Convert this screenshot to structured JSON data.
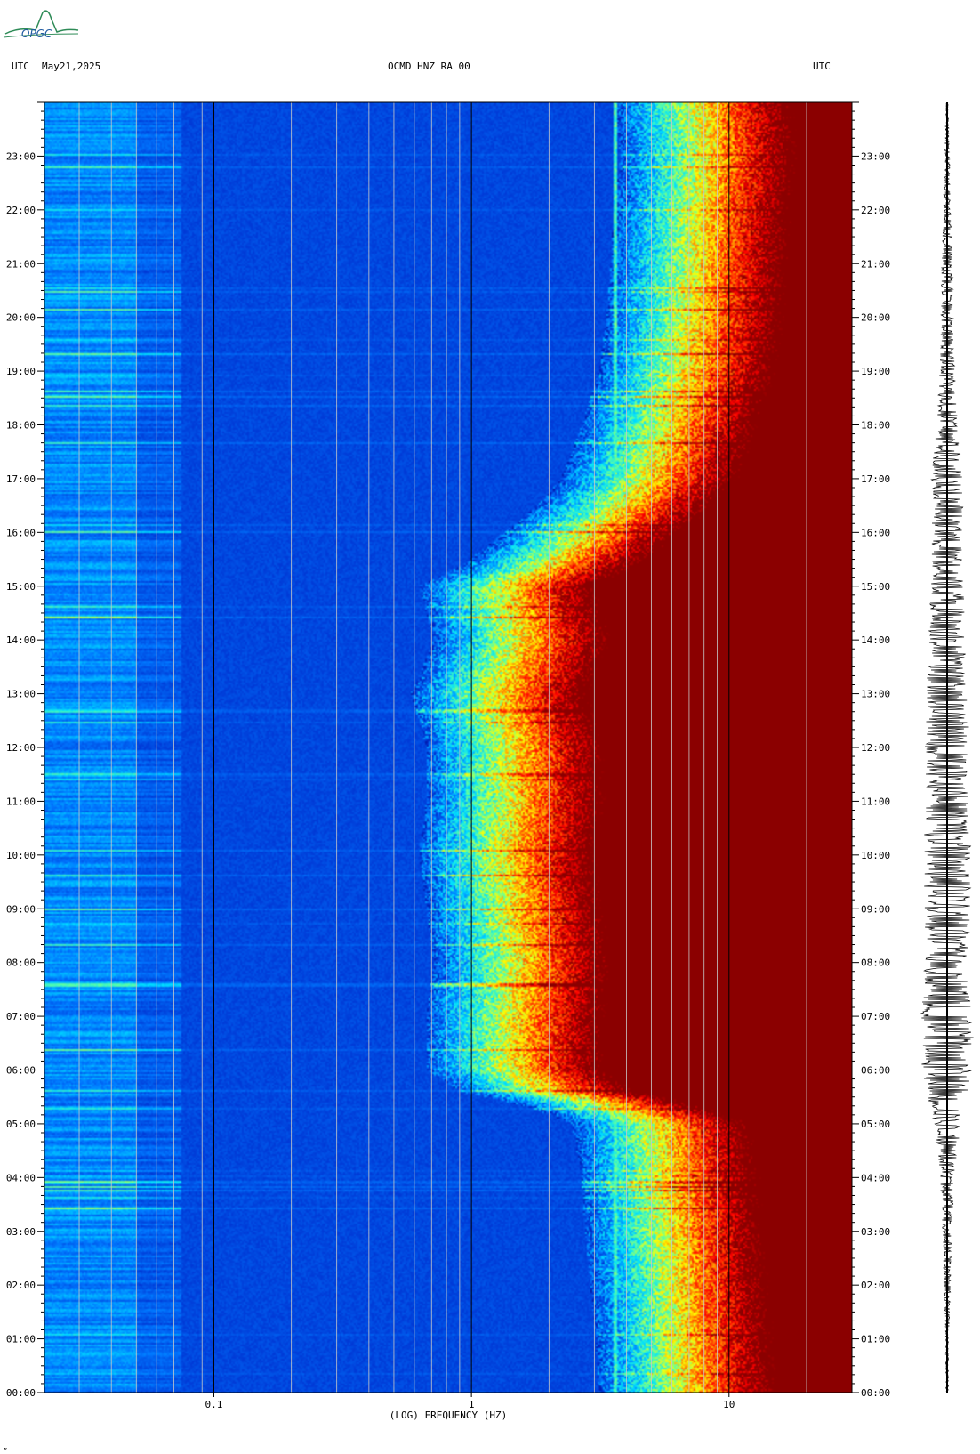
{
  "header": {
    "left_zone": "UTC",
    "date": "May21,2025",
    "station": "OCMD HNZ RA 00",
    "right_zone": "UTC"
  },
  "logo": {
    "text": "OPGC"
  },
  "footnote": {
    "text": "„"
  },
  "chart_data": {
    "type": "heatmap",
    "subtype": "spectrogram",
    "xlabel": "(LOG) FREQUENCY (HZ)",
    "xscale": "log",
    "xlim": [
      0.022,
      30
    ],
    "xticks": [
      {
        "value": 0.1,
        "label": "0.1"
      },
      {
        "value": 1,
        "label": "1"
      },
      {
        "value": 10,
        "label": "10"
      }
    ],
    "gridlines_hz": [
      0.03,
      0.04,
      0.05,
      0.06,
      0.07,
      0.08,
      0.09,
      0.2,
      0.3,
      0.4,
      0.5,
      0.6,
      0.7,
      0.8,
      0.9,
      2,
      3,
      4,
      5,
      6,
      7,
      8,
      9,
      20
    ],
    "ylim_hours": [
      0,
      24
    ],
    "yticks": [
      {
        "value": 0,
        "label": "00:00"
      },
      {
        "value": 1,
        "label": "01:00"
      },
      {
        "value": 2,
        "label": "02:00"
      },
      {
        "value": 3,
        "label": "03:00"
      },
      {
        "value": 4,
        "label": "04:00"
      },
      {
        "value": 5,
        "label": "05:00"
      },
      {
        "value": 6,
        "label": "06:00"
      },
      {
        "value": 7,
        "label": "07:00"
      },
      {
        "value": 8,
        "label": "08:00"
      },
      {
        "value": 9,
        "label": "09:00"
      },
      {
        "value": 10,
        "label": "10:00"
      },
      {
        "value": 11,
        "label": "11:00"
      },
      {
        "value": 12,
        "label": "12:00"
      },
      {
        "value": 13,
        "label": "13:00"
      },
      {
        "value": 14,
        "label": "14:00"
      },
      {
        "value": 15,
        "label": "15:00"
      },
      {
        "value": 16,
        "label": "16:00"
      },
      {
        "value": 17,
        "label": "17:00"
      },
      {
        "value": 18,
        "label": "18:00"
      },
      {
        "value": 19,
        "label": "19:00"
      },
      {
        "value": 20,
        "label": "20:00"
      },
      {
        "value": 21,
        "label": "21:00"
      },
      {
        "value": 22,
        "label": "22:00"
      },
      {
        "value": 23,
        "label": "23:00"
      }
    ],
    "colormap": [
      "#00007f",
      "#0030d0",
      "#0078ff",
      "#00e0ff",
      "#60ffa0",
      "#ffff00",
      "#ff8000",
      "#ff0000",
      "#8b0000"
    ],
    "noise_edge_hz_by_hour": [
      [
        0,
        7.0
      ],
      [
        1,
        6.8
      ],
      [
        2,
        6.5
      ],
      [
        3,
        6.2
      ],
      [
        4,
        6.0
      ],
      [
        5,
        5.5
      ],
      [
        5.6,
        2.0
      ],
      [
        6,
        1.5
      ],
      [
        7,
        1.5
      ],
      [
        8,
        1.6
      ],
      [
        9,
        1.5
      ],
      [
        10,
        1.4
      ],
      [
        11,
        1.5
      ],
      [
        12,
        1.5
      ],
      [
        13,
        1.3
      ],
      [
        14,
        1.6
      ],
      [
        15,
        1.4
      ],
      [
        16,
        3.0
      ],
      [
        17,
        5.0
      ],
      [
        18,
        6.0
      ],
      [
        19,
        7.0
      ],
      [
        20,
        7.5
      ],
      [
        21,
        7.8
      ],
      [
        22,
        8.0
      ],
      [
        23,
        8.5
      ],
      [
        24,
        8.0
      ]
    ],
    "seismogram": {
      "amplitude_envelope_by_hour": [
        [
          0,
          0.04
        ],
        [
          1,
          0.05
        ],
        [
          2,
          0.12
        ],
        [
          3,
          0.15
        ],
        [
          4,
          0.25
        ],
        [
          5,
          0.45
        ],
        [
          6,
          0.85
        ],
        [
          7,
          0.9
        ],
        [
          8,
          0.75
        ],
        [
          9,
          0.8
        ],
        [
          10,
          0.8
        ],
        [
          11,
          0.7
        ],
        [
          12,
          0.75
        ],
        [
          13,
          0.7
        ],
        [
          14,
          0.6
        ],
        [
          15,
          0.55
        ],
        [
          16,
          0.5
        ],
        [
          17,
          0.55
        ],
        [
          18,
          0.35
        ],
        [
          19,
          0.25
        ],
        [
          20,
          0.2
        ],
        [
          21,
          0.18
        ],
        [
          22,
          0.12
        ],
        [
          23,
          0.08
        ],
        [
          24,
          0.03
        ]
      ]
    }
  }
}
